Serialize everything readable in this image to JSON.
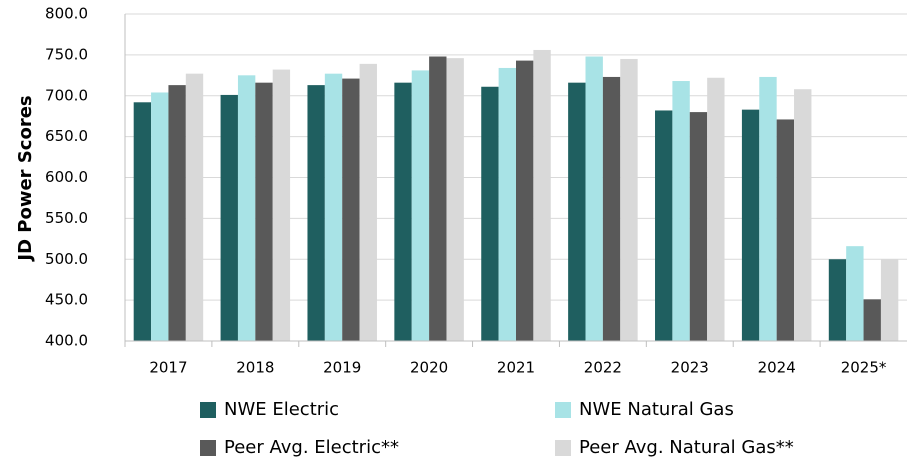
{
  "chart_data": {
    "type": "bar",
    "y_axis_label": "JD Power Scores",
    "categories": [
      "2017",
      "2018",
      "2019",
      "2020",
      "2021",
      "2022",
      "2023",
      "2024",
      "2025*"
    ],
    "series": [
      {
        "name": "NWE Electric",
        "color": "#1f5f60",
        "values": [
          692,
          701,
          713,
          716,
          711,
          716,
          682,
          683,
          500
        ]
      },
      {
        "name": "NWE Natural Gas",
        "color": "#a8e3e6",
        "values": [
          704,
          725,
          727,
          731,
          734,
          748,
          718,
          723,
          516
        ]
      },
      {
        "name": "Peer Avg. Electric**",
        "color": "#595959",
        "values": [
          713,
          716,
          721,
          748,
          743,
          723,
          680,
          671,
          451
        ]
      },
      {
        "name": "Peer Avg. Natural Gas**",
        "color": "#d9d9d9",
        "values": [
          727,
          732,
          739,
          746,
          756,
          745,
          722,
          708,
          500
        ]
      }
    ],
    "ylim": [
      400,
      800
    ],
    "yticks": [
      {
        "value": 400,
        "label": "400.0"
      },
      {
        "value": 450,
        "label": "450.0"
      },
      {
        "value": 500,
        "label": "500.0"
      },
      {
        "value": 550,
        "label": "550.0"
      },
      {
        "value": 600,
        "label": "600.0"
      },
      {
        "value": 650,
        "label": "650.0"
      },
      {
        "value": 700,
        "label": "700.0"
      },
      {
        "value": 750,
        "label": "750.0"
      },
      {
        "value": 800,
        "label": "800.0"
      }
    ],
    "grid": true
  }
}
